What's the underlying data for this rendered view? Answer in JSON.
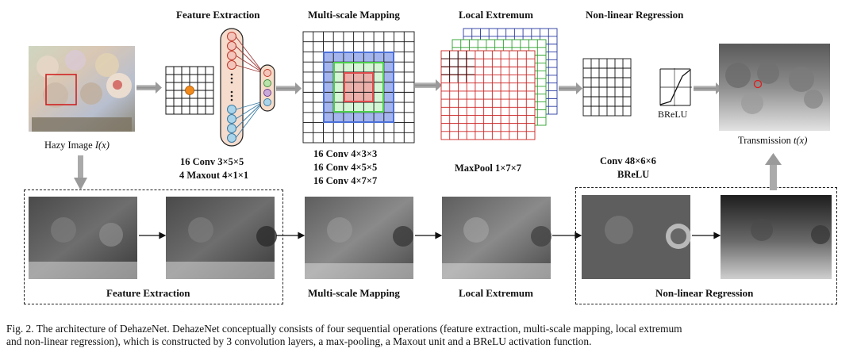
{
  "stages_top": {
    "feature_extraction": "Feature Extraction",
    "multiscale_mapping": "Multi-scale Mapping",
    "local_extremum": "Local Extremum",
    "nonlinear_regression": "Non-linear Regression"
  },
  "input_label": {
    "text": "Hazy Image ",
    "var": "I(x)"
  },
  "output_label": {
    "text": "Transmission  ",
    "var": "t(x)"
  },
  "brelu_label": "BReLU",
  "params": {
    "feature_extraction": [
      "16 Conv  3×5×5",
      "4 Maxout  4×1×1"
    ],
    "multiscale_mapping": [
      "16 Conv  4×3×3",
      "16 Conv  4×5×5",
      "16 Conv  4×7×7"
    ],
    "local_extremum": [
      "MaxPool  1×7×7"
    ],
    "nonlinear_regression": [
      "Conv  48×6×6",
      "BReLU"
    ]
  },
  "stages_bottom": {
    "feature_extraction": "Feature Extraction",
    "multiscale_mapping": "Multi-scale Mapping",
    "local_extremum": "Local Extremum",
    "nonlinear_regression": "Non-linear Regression"
  },
  "caption": {
    "line1": "Fig. 2.   The architecture of DehazeNet. DehazeNet conceptually consists of four sequential operations (feature extraction, multi-scale mapping, local extremum",
    "line2": "and non-linear regression), which is constructed by 3 convolution layers, a max-pooling, a Maxout unit and a BReLU activation function."
  },
  "colors": {
    "neuron_fill": "#f3c5bb",
    "neuron_stroke": "#c0392b",
    "maxout_fill": "#f6dcc9",
    "unit_green": "#b9e3a9",
    "unit_purple": "#c9a9dc",
    "unit_blue": "#a9d4ea",
    "dot_orange": "#f08a1c",
    "scale_blue": "#4a6fd8",
    "scale_green": "#6fdc6f",
    "scale_red": "#e04c4c",
    "arrow_gray": "#9a9a9a"
  }
}
